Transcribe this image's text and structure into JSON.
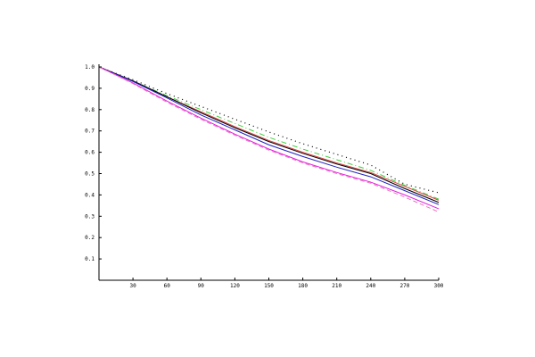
{
  "chart_data": {
    "type": "line",
    "title": "",
    "xlabel": "",
    "ylabel": "",
    "xlim": [
      0,
      300
    ],
    "ylim": [
      0,
      1.0
    ],
    "grid": false,
    "x_ticks": [
      "30",
      "60",
      "90",
      "120",
      "150",
      "180",
      "210",
      "240",
      "270",
      "300"
    ],
    "y_ticks": [
      "0.1",
      "0.2",
      "0.3",
      "0.4",
      "0.5",
      "0.6",
      "0.7",
      "0.8",
      "0.9",
      "1.0"
    ],
    "x": [
      0,
      30,
      60,
      90,
      120,
      150,
      180,
      210,
      240,
      270,
      300
    ],
    "series": [
      {
        "color": "#000000",
        "style": "dotted",
        "values": [
          1.0,
          0.94,
          0.875,
          0.815,
          0.755,
          0.695,
          0.64,
          0.59,
          0.54,
          0.45,
          0.41
        ]
      },
      {
        "color": "#e04040",
        "style": "solid",
        "values": [
          1.0,
          0.935,
          0.86,
          0.79,
          0.72,
          0.655,
          0.6,
          0.55,
          0.505,
          0.44,
          0.375
        ]
      },
      {
        "color": "#40d040",
        "style": "dashdot",
        "values": [
          1.0,
          0.935,
          0.865,
          0.8,
          0.735,
          0.67,
          0.615,
          0.565,
          0.515,
          0.445,
          0.38
        ]
      },
      {
        "color": "#000000",
        "style": "solid",
        "values": [
          1.0,
          0.935,
          0.86,
          0.785,
          0.715,
          0.65,
          0.595,
          0.545,
          0.5,
          0.43,
          0.365
        ]
      },
      {
        "color": "#2020c0",
        "style": "solid",
        "values": [
          1.0,
          0.932,
          0.855,
          0.775,
          0.705,
          0.635,
          0.58,
          0.53,
          0.485,
          0.42,
          0.355
        ]
      },
      {
        "color": "#e020e0",
        "style": "solid",
        "values": [
          1.0,
          0.925,
          0.84,
          0.76,
          0.685,
          0.615,
          0.555,
          0.505,
          0.46,
          0.4,
          0.335
        ]
      },
      {
        "color": "#f070c0",
        "style": "dashed",
        "values": [
          1.0,
          0.922,
          0.835,
          0.755,
          0.68,
          0.61,
          0.55,
          0.5,
          0.455,
          0.39,
          0.32
        ]
      }
    ]
  }
}
